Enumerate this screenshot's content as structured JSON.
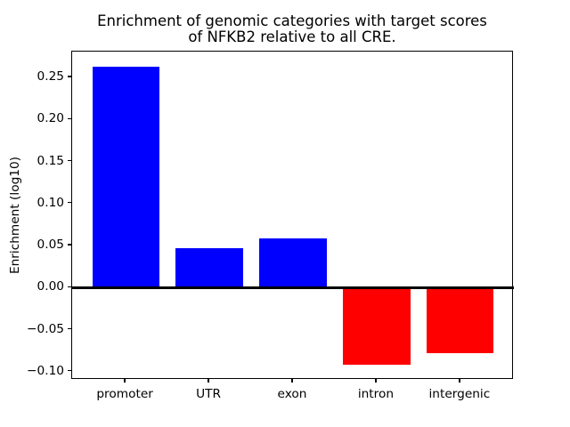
{
  "chart_data": {
    "type": "bar",
    "title_line1": "Enrichment of genomic categories with target scores",
    "title_line2": "of NFKB2 relative to all CRE.",
    "title": "Enrichment of genomic categories with target scores of NFKB2 relative to all CRE.",
    "ylabel": "Enrichment (log10)",
    "xlabel": "",
    "categories": [
      "promoter",
      "UTR",
      "exon",
      "intron",
      "intergenic"
    ],
    "values": [
      0.263,
      0.047,
      0.059,
      -0.092,
      -0.078
    ],
    "positive_color": "#0000ff",
    "negative_color": "#ff0000",
    "axis_color": "#000000",
    "background_color": "#ffffff",
    "ylim": [
      -0.10975,
      0.28075
    ],
    "yticks": [
      -0.1,
      -0.05,
      0.0,
      0.05,
      0.1,
      0.15,
      0.2,
      0.25
    ],
    "ytick_labels": [
      "−0.10",
      "−0.05",
      "0.00",
      "0.05",
      "0.10",
      "0.15",
      "0.20",
      "0.25"
    ],
    "zero_line": true,
    "grid": false,
    "legend": false
  }
}
